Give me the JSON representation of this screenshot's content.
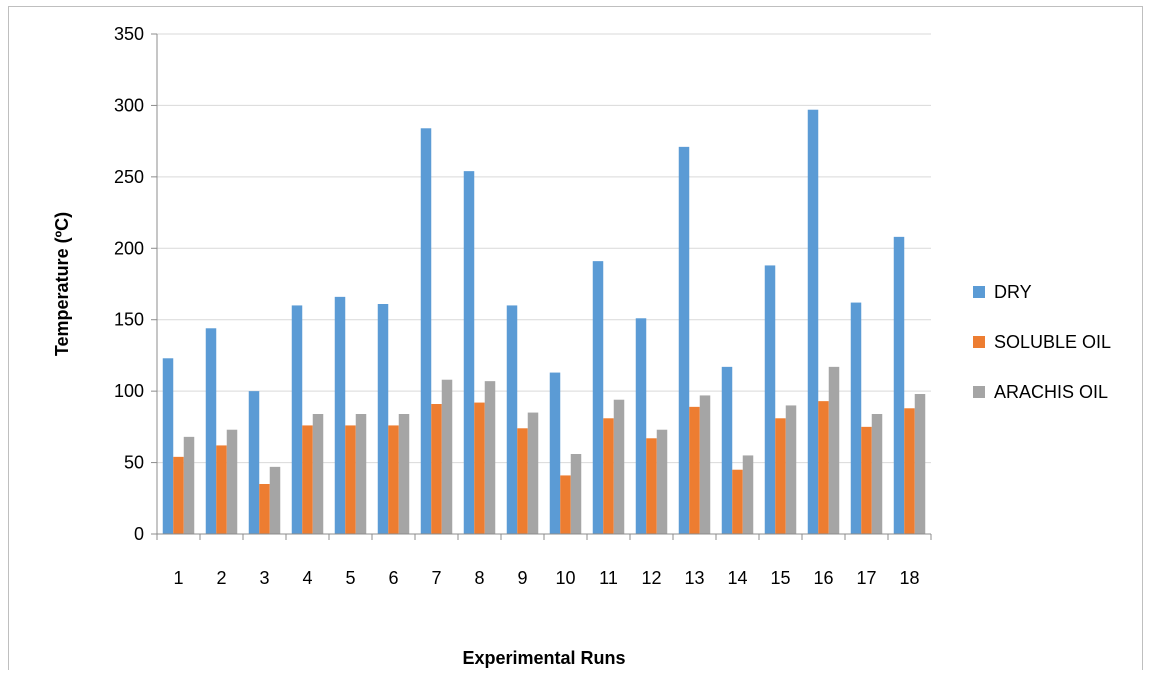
{
  "chart_data": {
    "type": "bar",
    "title": "",
    "xlabel": "Experimental Runs",
    "ylabel": "Temperature (ºC)",
    "ylim": [
      0,
      350
    ],
    "yticks": [
      0,
      50,
      100,
      150,
      200,
      250,
      300,
      350
    ],
    "grid": true,
    "legend_position": "right",
    "categories": [
      "1",
      "2",
      "3",
      "4",
      "5",
      "6",
      "7",
      "8",
      "9",
      "10",
      "11",
      "12",
      "13",
      "14",
      "15",
      "16",
      "17",
      "18"
    ],
    "series": [
      {
        "name": "DRY",
        "color": "#5b9bd5",
        "values": [
          123,
          144,
          100,
          160,
          166,
          161,
          284,
          254,
          160,
          113,
          191,
          151,
          271,
          117,
          188,
          297,
          162,
          208
        ]
      },
      {
        "name": "SOLUBLE OIL",
        "color": "#ed7d31",
        "values": [
          54,
          62,
          35,
          76,
          76,
          76,
          91,
          92,
          74,
          41,
          81,
          67,
          89,
          45,
          81,
          93,
          75,
          88
        ]
      },
      {
        "name": "ARACHIS OIL",
        "color": "#a5a5a5",
        "values": [
          68,
          73,
          47,
          84,
          84,
          84,
          108,
          107,
          85,
          56,
          94,
          73,
          97,
          55,
          90,
          117,
          84,
          98
        ]
      }
    ]
  }
}
